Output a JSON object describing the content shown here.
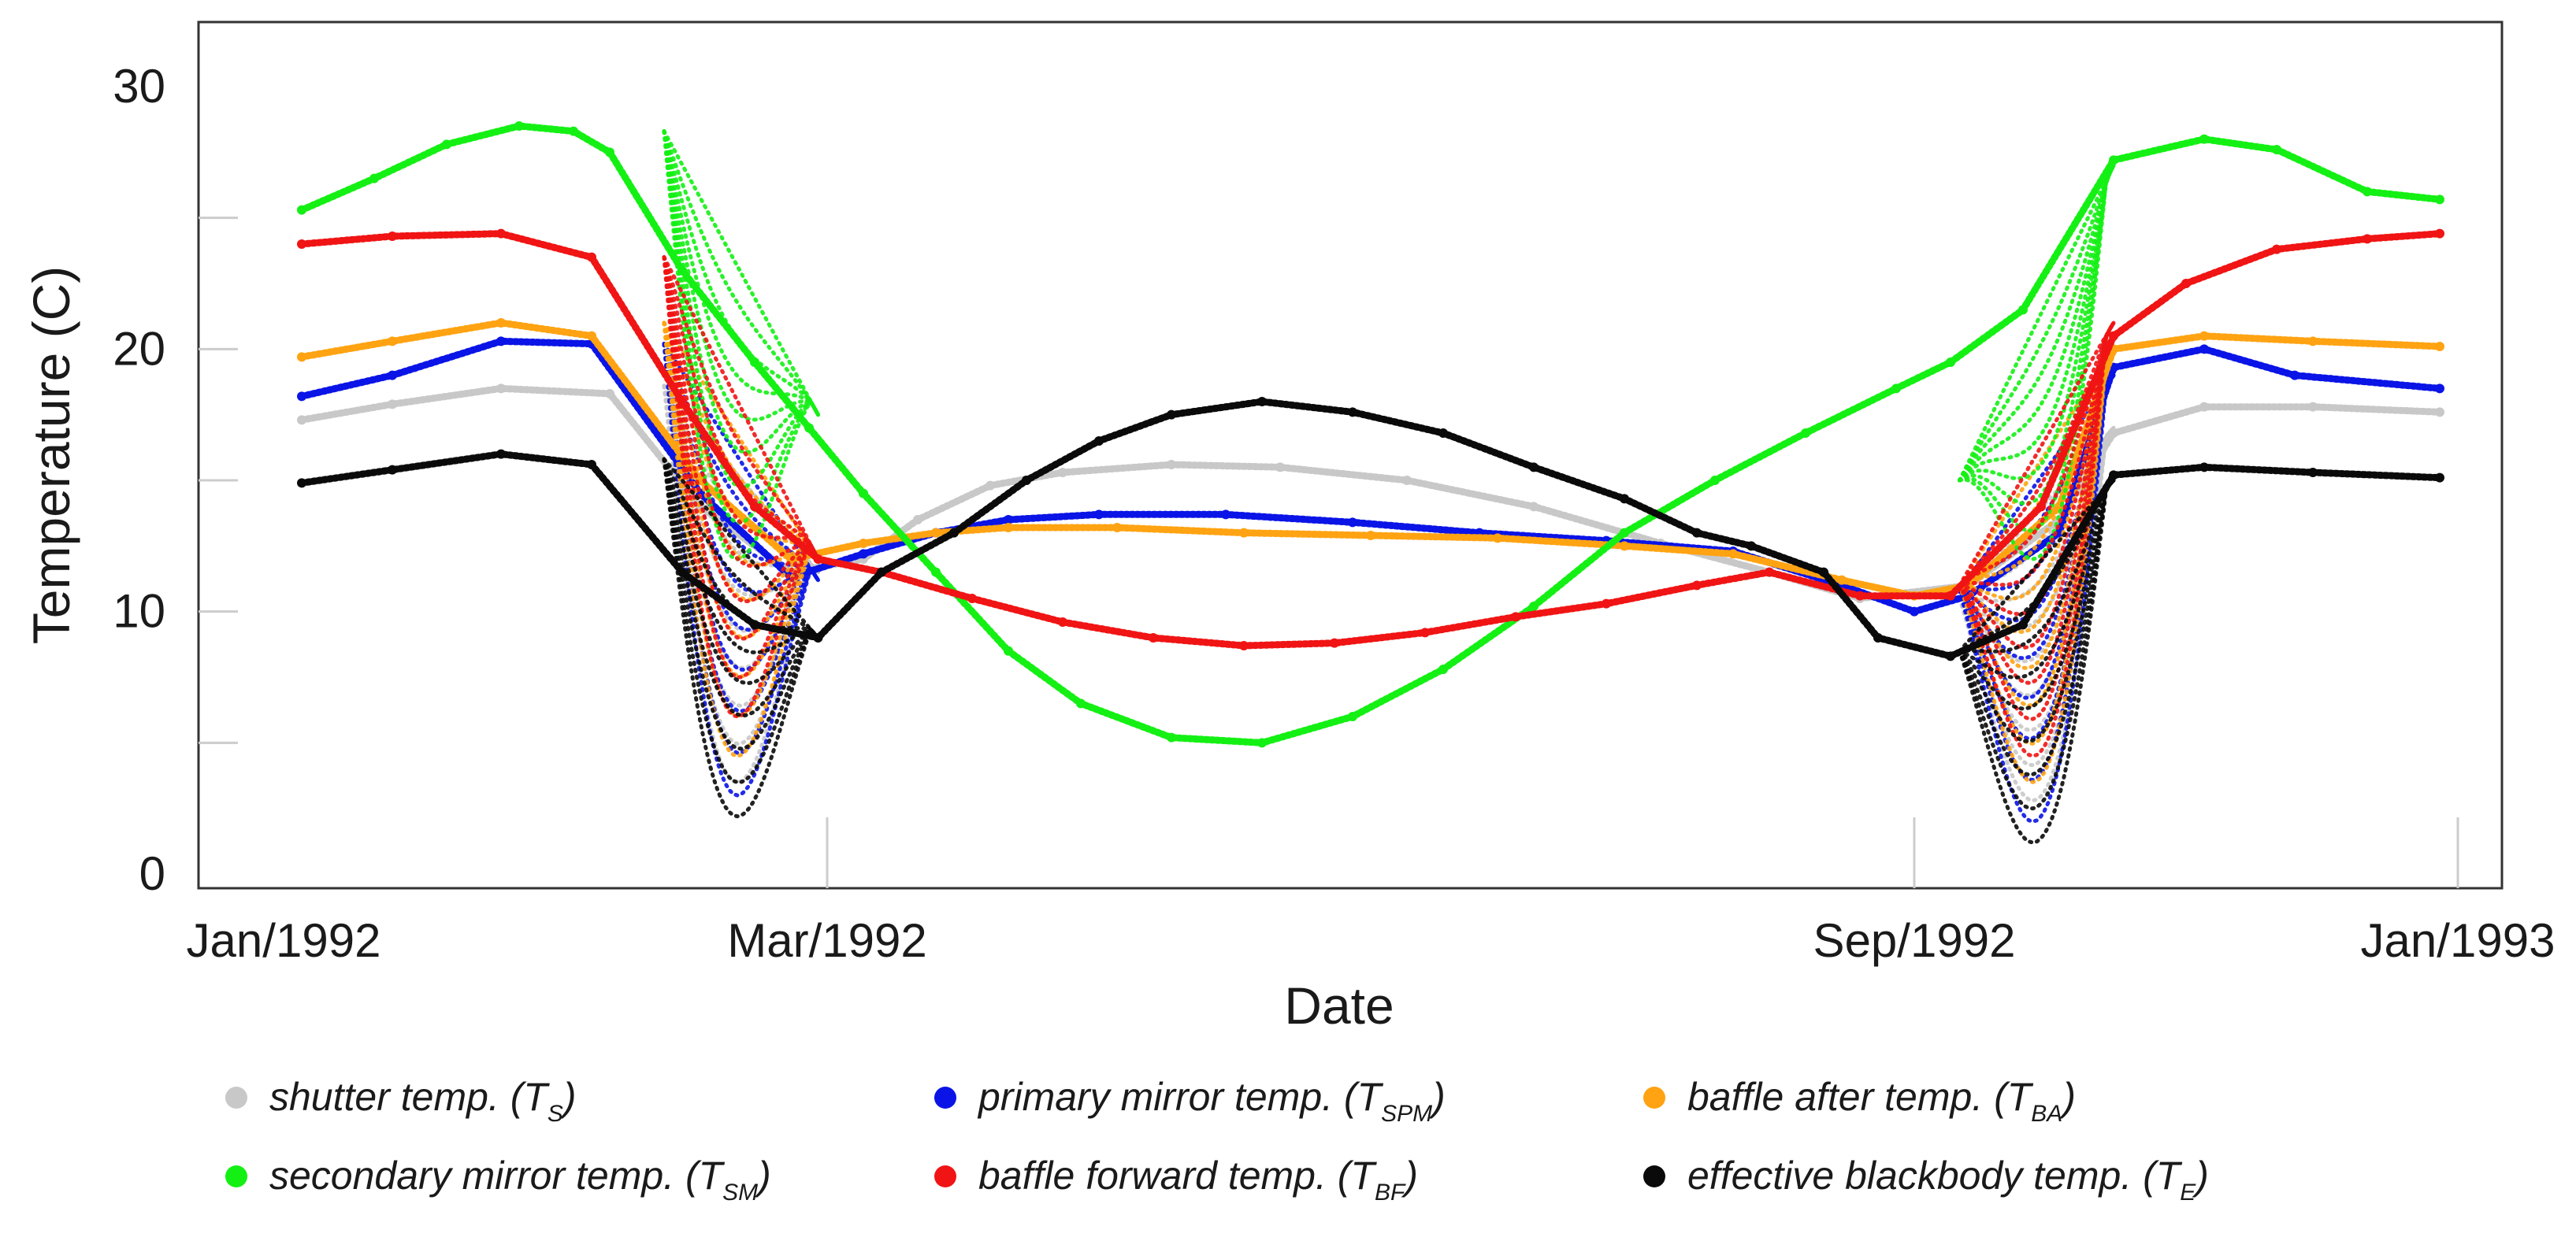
{
  "chart_data": {
    "type": "scatter",
    "title": "",
    "xlabel": "Date",
    "ylabel": "Temperature (C)",
    "xlim": [
      0,
      12
    ],
    "ylim": [
      0,
      32
    ],
    "x_unit": "months since Jan 1992 (axis ticks as labeled)",
    "grid": false,
    "legend_position": "bottom",
    "x_ticks": [
      {
        "value": 0,
        "label": "Jan/1992"
      },
      {
        "value": 3,
        "label": "Mar/1992"
      },
      {
        "value": 9,
        "label": "Sep/1992"
      },
      {
        "value": 12,
        "label": "Jan/1993"
      }
    ],
    "y_ticks": [
      {
        "value": 0,
        "label": "0"
      },
      {
        "value": 10,
        "label": "10"
      },
      {
        "value": 20,
        "label": "20"
      },
      {
        "value": 30,
        "label": "30"
      }
    ],
    "x_minor_ticks": [
      3,
      9
    ],
    "y_minor_ticks": [
      5,
      10,
      15,
      20,
      25
    ],
    "series": [
      {
        "name": "shutter temp.",
        "symbol": "T",
        "subscript": "S",
        "color": "#c8c8c8",
        "points": [
          [
            0.1,
            17.3
          ],
          [
            0.6,
            17.9
          ],
          [
            1.2,
            18.5
          ],
          [
            1.8,
            18.3
          ],
          [
            2.3,
            14
          ],
          [
            2.8,
            11.5
          ],
          [
            3.2,
            12
          ],
          [
            3.5,
            13.5
          ],
          [
            3.9,
            14.8
          ],
          [
            4.3,
            15.3
          ],
          [
            4.9,
            15.6
          ],
          [
            5.5,
            15.5
          ],
          [
            6.2,
            15
          ],
          [
            6.9,
            14
          ],
          [
            7.6,
            12.6
          ],
          [
            8.2,
            11.5
          ],
          [
            8.7,
            10.5
          ],
          [
            9.3,
            11
          ],
          [
            9.8,
            13.5
          ],
          [
            10.1,
            16.8
          ],
          [
            10.6,
            17.8
          ],
          [
            11.2,
            17.8
          ],
          [
            11.9,
            17.6
          ]
        ],
        "scatter_band": {
          "x_range": [
            2.1,
            2.95
          ],
          "y_top": [
            18.6,
            11.5
          ],
          "y_min": 3.5,
          "x2_range": [
            9.25,
            10.1
          ],
          "y2_top": [
            10.5,
            17.0
          ],
          "y2_min": 2.8
        }
      },
      {
        "name": "primary mirror temp.",
        "symbol": "T",
        "subscript": "SPM",
        "color": "#0a14e6",
        "points": [
          [
            0.1,
            18.2
          ],
          [
            0.6,
            19
          ],
          [
            1.2,
            20.3
          ],
          [
            1.7,
            20.2
          ],
          [
            2.3,
            14.5
          ],
          [
            2.8,
            11.3
          ],
          [
            3.2,
            12.2
          ],
          [
            3.6,
            13.0
          ],
          [
            4.0,
            13.5
          ],
          [
            4.5,
            13.7
          ],
          [
            5.2,
            13.7
          ],
          [
            5.9,
            13.4
          ],
          [
            6.6,
            13.0
          ],
          [
            7.3,
            12.7
          ],
          [
            8.0,
            12.3
          ],
          [
            8.6,
            11.0
          ],
          [
            9.0,
            10.0
          ],
          [
            9.3,
            10.6
          ],
          [
            9.8,
            13
          ],
          [
            10.1,
            19.3
          ],
          [
            10.6,
            20
          ],
          [
            11.1,
            19
          ],
          [
            11.9,
            18.5
          ]
        ],
        "scatter_band": {
          "x_range": [
            2.1,
            2.95
          ],
          "y_top": [
            20.2,
            11.2
          ],
          "y_min": 3.0,
          "x2_range": [
            9.25,
            10.1
          ],
          "y2_top": [
            10.8,
            19.0
          ],
          "y2_min": 2.0
        }
      },
      {
        "name": "baffle after temp.",
        "symbol": "T",
        "subscript": "BA",
        "color": "#ffa312",
        "points": [
          [
            0.1,
            19.7
          ],
          [
            0.6,
            20.3
          ],
          [
            1.2,
            21
          ],
          [
            1.7,
            20.5
          ],
          [
            2.3,
            15
          ],
          [
            2.8,
            12
          ],
          [
            3.2,
            12.6
          ],
          [
            3.6,
            13
          ],
          [
            4.0,
            13.2
          ],
          [
            4.6,
            13.2
          ],
          [
            5.3,
            13.0
          ],
          [
            6.0,
            12.9
          ],
          [
            6.7,
            12.8
          ],
          [
            7.4,
            12.5
          ],
          [
            8.0,
            12.2
          ],
          [
            8.6,
            11.2
          ],
          [
            9.0,
            10.6
          ],
          [
            9.3,
            11
          ],
          [
            9.8,
            14
          ],
          [
            10.1,
            20.0
          ],
          [
            10.6,
            20.5
          ],
          [
            11.2,
            20.3
          ],
          [
            11.9,
            20.1
          ]
        ],
        "scatter_band": {
          "x_range": [
            2.1,
            2.95
          ],
          "y_top": [
            21.0,
            12.0
          ],
          "y_min": 4.5,
          "x2_range": [
            9.25,
            10.1
          ],
          "y2_top": [
            11.0,
            20.0
          ],
          "y2_min": 3.5
        }
      },
      {
        "name": "secondary mirror temp.",
        "symbol": "T",
        "subscript": "SM",
        "color": "#14f014",
        "points": [
          [
            0.1,
            25.3
          ],
          [
            0.5,
            26.5
          ],
          [
            0.9,
            27.8
          ],
          [
            1.3,
            28.5
          ],
          [
            1.6,
            28.3
          ],
          [
            1.8,
            27.5
          ],
          [
            2.2,
            23
          ],
          [
            2.6,
            19.5
          ],
          [
            2.9,
            17
          ],
          [
            3.2,
            14.5
          ],
          [
            3.6,
            11.5
          ],
          [
            4.0,
            8.5
          ],
          [
            4.4,
            6.5
          ],
          [
            4.9,
            5.2
          ],
          [
            5.4,
            5.0
          ],
          [
            5.9,
            6.0
          ],
          [
            6.4,
            7.8
          ],
          [
            6.9,
            10.2
          ],
          [
            7.4,
            13
          ],
          [
            7.9,
            15
          ],
          [
            8.4,
            16.8
          ],
          [
            8.9,
            18.5
          ],
          [
            9.2,
            19.5
          ],
          [
            9.6,
            21.5
          ],
          [
            10.1,
            27.2
          ],
          [
            10.6,
            28.0
          ],
          [
            11.0,
            27.6
          ],
          [
            11.5,
            26
          ],
          [
            11.9,
            25.7
          ]
        ],
        "scatter_band": {
          "x_range": [
            2.1,
            2.95
          ],
          "y_top": [
            28.3,
            17.5
          ],
          "y_min": 12.0,
          "x2_range": [
            9.25,
            10.1
          ],
          "y2_top": [
            15.0,
            27.0
          ],
          "y2_min": 12.0
        }
      },
      {
        "name": "baffle forward temp.",
        "symbol": "T",
        "subscript": "BF",
        "color": "#f01414",
        "points": [
          [
            0.1,
            24.0
          ],
          [
            0.6,
            24.3
          ],
          [
            1.2,
            24.4
          ],
          [
            1.7,
            23.5
          ],
          [
            2.2,
            18
          ],
          [
            2.6,
            14
          ],
          [
            2.95,
            12
          ],
          [
            3.3,
            11.5
          ],
          [
            3.8,
            10.5
          ],
          [
            4.3,
            9.6
          ],
          [
            4.8,
            9.0
          ],
          [
            5.3,
            8.7
          ],
          [
            5.8,
            8.8
          ],
          [
            6.3,
            9.2
          ],
          [
            6.8,
            9.8
          ],
          [
            7.3,
            10.3
          ],
          [
            7.8,
            11.0
          ],
          [
            8.2,
            11.5
          ],
          [
            8.7,
            10.6
          ],
          [
            9.2,
            10.6
          ],
          [
            9.7,
            14
          ],
          [
            10.1,
            20.5
          ],
          [
            10.5,
            22.5
          ],
          [
            11.0,
            23.8
          ],
          [
            11.5,
            24.2
          ],
          [
            11.9,
            24.4
          ]
        ],
        "scatter_band": {
          "x_range": [
            2.1,
            2.95
          ],
          "y_top": [
            23.5,
            12.0
          ],
          "y_min": 6.0,
          "x2_range": [
            9.25,
            10.1
          ],
          "y2_top": [
            11.0,
            21.0
          ],
          "y2_min": 4.5
        }
      },
      {
        "name": "effective blackbody temp.",
        "symbol": "T",
        "subscript": "E",
        "color": "#0a0a0a",
        "points": [
          [
            0.1,
            14.9
          ],
          [
            0.6,
            15.4
          ],
          [
            1.2,
            16
          ],
          [
            1.7,
            15.6
          ],
          [
            2.2,
            11.5
          ],
          [
            2.6,
            9.5
          ],
          [
            2.95,
            9.0
          ],
          [
            3.3,
            11.5
          ],
          [
            3.7,
            13
          ],
          [
            4.1,
            15
          ],
          [
            4.5,
            16.5
          ],
          [
            4.9,
            17.5
          ],
          [
            5.4,
            18.0
          ],
          [
            5.9,
            17.6
          ],
          [
            6.4,
            16.8
          ],
          [
            6.9,
            15.5
          ],
          [
            7.4,
            14.3
          ],
          [
            7.8,
            13.0
          ],
          [
            8.1,
            12.5
          ],
          [
            8.5,
            11.5
          ],
          [
            8.8,
            9.0
          ],
          [
            9.2,
            8.3
          ],
          [
            9.6,
            9.5
          ],
          [
            10.1,
            15.2
          ],
          [
            10.6,
            15.5
          ],
          [
            11.2,
            15.3
          ],
          [
            11.9,
            15.1
          ]
        ],
        "scatter_band": {
          "x_range": [
            2.1,
            2.95
          ],
          "y_top": [
            15.8,
            9.0
          ],
          "y_min": 2.2,
          "x2_range": [
            9.25,
            10.1
          ],
          "y2_top": [
            8.5,
            15.0
          ],
          "y2_min": 1.2
        }
      }
    ]
  }
}
